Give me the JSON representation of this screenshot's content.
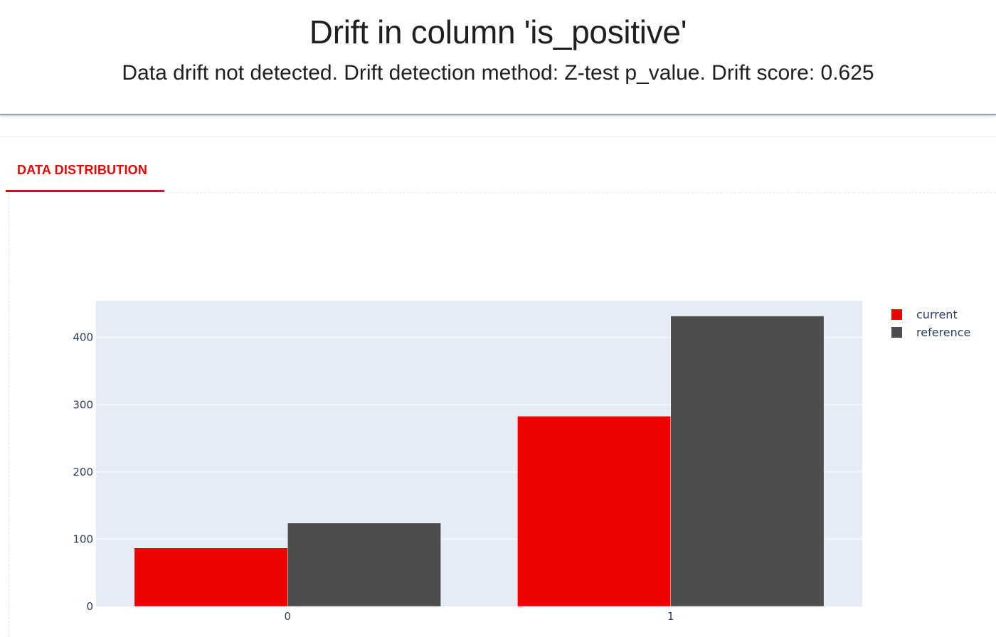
{
  "header": {
    "title": "Drift in column 'is_positive'",
    "subtitle": "Data drift not detected. Drift detection method: Z-test p_value. Drift score: 0.625"
  },
  "tabs": [
    {
      "label": "DATA DISTRIBUTION",
      "active": true
    }
  ],
  "colors": {
    "accent": "#ed0400",
    "current": "#ed0400",
    "reference": "#4d4d4d",
    "plot_bg": "#e5ecf6"
  },
  "chart_data": {
    "type": "bar",
    "categories": [
      "0",
      "1"
    ],
    "series": [
      {
        "name": "current",
        "values": [
          87,
          283
        ],
        "color": "#ed0400"
      },
      {
        "name": "reference",
        "values": [
          124,
          432
        ],
        "color": "#4d4d4d"
      }
    ],
    "yticks": [
      0,
      100,
      200,
      300,
      400
    ],
    "ylim": [
      0,
      454.7
    ],
    "title": "",
    "xlabel": "",
    "ylabel": "",
    "grid": true,
    "legend": "top-right"
  }
}
